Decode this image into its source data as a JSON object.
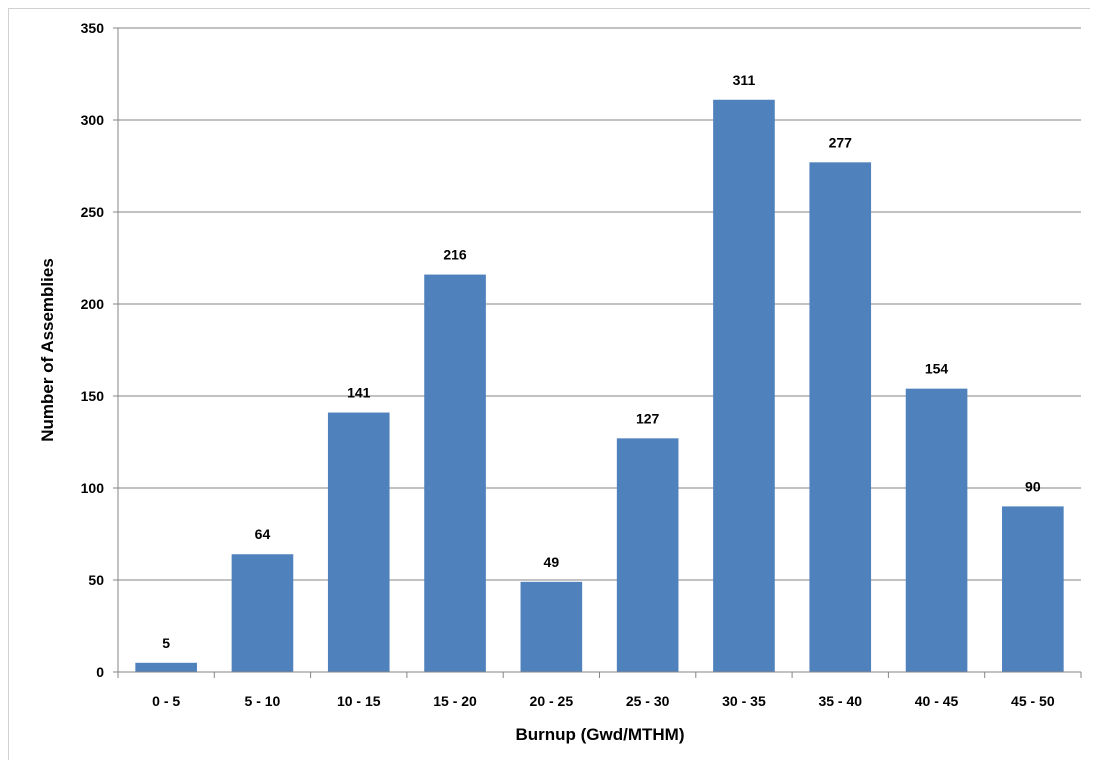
{
  "chart_data": {
    "type": "bar",
    "categories": [
      "0 - 5",
      "5 - 10",
      "10 - 15",
      "15 - 20",
      "20 - 25",
      "25 - 30",
      "30 - 35",
      "35 - 40",
      "40 - 45",
      "45 - 50"
    ],
    "values": [
      5,
      64,
      141,
      216,
      49,
      127,
      311,
      277,
      154,
      90
    ],
    "data_labels": [
      "5",
      "64",
      "141",
      "216",
      "49",
      "127",
      "311",
      "277",
      "154",
      "90"
    ],
    "xlabel": "Burnup (Gwd/MTHM)",
    "ylabel": "Number of Assemblies",
    "ylim": [
      0,
      350
    ],
    "yticks": [
      0,
      50,
      100,
      150,
      200,
      250,
      300,
      350
    ],
    "ytick_labels": [
      "0",
      "50",
      "100",
      "150",
      "200",
      "250",
      "300",
      "350"
    ],
    "grid": true,
    "legend": "none",
    "bar_color": "#4f81bd",
    "grid_color": "#868686"
  }
}
